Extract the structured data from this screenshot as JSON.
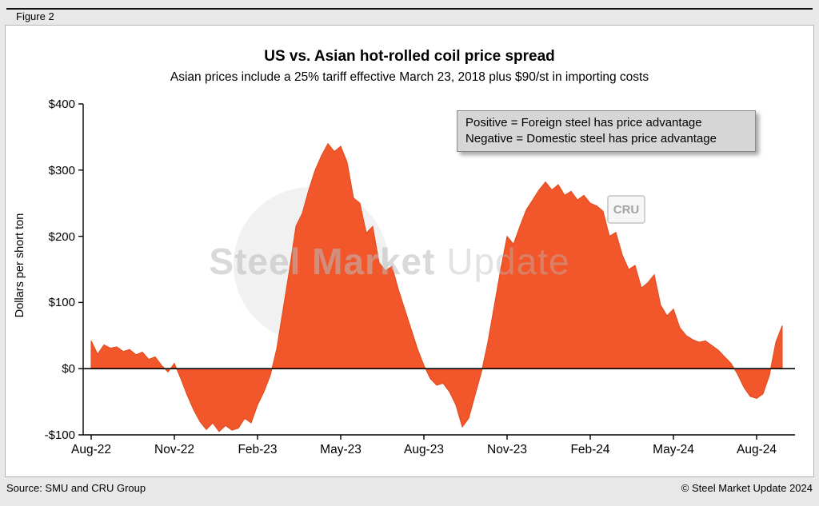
{
  "figure_label": "Figure 2",
  "chart_data": {
    "type": "area",
    "title": "US vs. Asian hot-rolled coil price spread",
    "subtitle": "Asian prices include a 25% tariff effective March 23, 2018 plus $90/st in importing costs",
    "ylabel": "Dollars per short ton",
    "ylim": [
      -100,
      400
    ],
    "y_ticks": [
      400,
      300,
      200,
      100,
      0,
      -100
    ],
    "y_tick_labels": [
      "$400",
      "$300",
      "$200",
      "$100",
      "$0",
      "-$100"
    ],
    "x_tick_labels": [
      "Aug-22",
      "Nov-22",
      "Feb-23",
      "May-23",
      "Aug-23",
      "Nov-23",
      "Feb-24",
      "May-24",
      "Aug-24"
    ],
    "points_per_tick_interval": 13,
    "baseline": 0,
    "grid": false,
    "fill_color": "#f2572b",
    "stroke_color": "#e04a1d",
    "annotation": [
      "Positive = Foreign steel has price advantage",
      "Negative = Domestic steel has price advantage"
    ],
    "values": [
      42,
      22,
      36,
      31,
      33,
      26,
      29,
      21,
      25,
      14,
      18,
      5,
      -5,
      8,
      -15,
      -40,
      -62,
      -80,
      -92,
      -82,
      -95,
      -86,
      -93,
      -90,
      -75,
      -82,
      -55,
      -35,
      -10,
      30,
      90,
      150,
      215,
      235,
      270,
      300,
      322,
      340,
      328,
      336,
      312,
      258,
      250,
      205,
      215,
      160,
      148,
      155,
      120,
      90,
      60,
      30,
      5,
      -15,
      -25,
      -22,
      -35,
      -55,
      -88,
      -75,
      -40,
      -5,
      40,
      95,
      150,
      200,
      188,
      215,
      240,
      255,
      270,
      282,
      270,
      278,
      262,
      268,
      255,
      262,
      250,
      246,
      238,
      200,
      206,
      172,
      150,
      156,
      122,
      130,
      142,
      96,
      80,
      90,
      62,
      50,
      44,
      40,
      42,
      35,
      28,
      18,
      8,
      -8,
      -28,
      -42,
      -45,
      -38,
      -10,
      40,
      65
    ]
  },
  "watermark": {
    "text_bold": "Steel Market",
    "text_light": "Update",
    "cru_badge": "CRU"
  },
  "footer": {
    "source": "Source: SMU and CRU Group",
    "copyright": "© Steel Market Update 2024"
  }
}
